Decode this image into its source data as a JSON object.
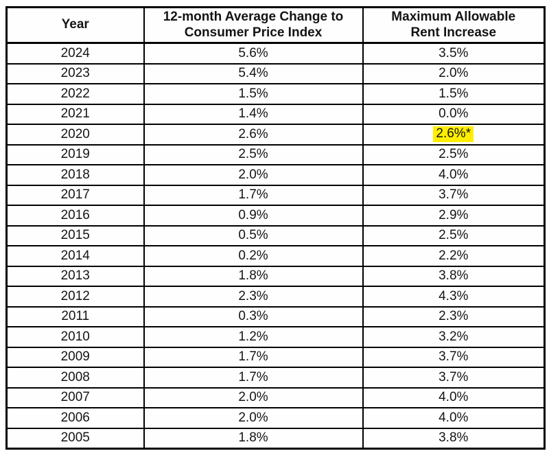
{
  "colors": {
    "border": "#000000",
    "text": "#141414",
    "background": "#ffffff",
    "highlight": "#ffee00"
  },
  "table": {
    "columns": [
      {
        "label": "Year"
      },
      {
        "label": "12-month Average Change to\nConsumer Price Index"
      },
      {
        "label": "Maximum Allowable\nRent Increase"
      }
    ],
    "rows": [
      {
        "year": "2024",
        "cpi": "5.6%",
        "max": "3.5%",
        "highlighted": false
      },
      {
        "year": "2023",
        "cpi": "5.4%",
        "max": "2.0%",
        "highlighted": false
      },
      {
        "year": "2022",
        "cpi": "1.5%",
        "max": "1.5%",
        "highlighted": false
      },
      {
        "year": "2021",
        "cpi": "1.4%",
        "max": "0.0%",
        "highlighted": false
      },
      {
        "year": "2020",
        "cpi": "2.6%",
        "max": "2.6%*",
        "highlighted": true
      },
      {
        "year": "2019",
        "cpi": "2.5%",
        "max": "2.5%",
        "highlighted": false
      },
      {
        "year": "2018",
        "cpi": "2.0%",
        "max": "4.0%",
        "highlighted": false
      },
      {
        "year": "2017",
        "cpi": "1.7%",
        "max": "3.7%",
        "highlighted": false
      },
      {
        "year": "2016",
        "cpi": "0.9%",
        "max": "2.9%",
        "highlighted": false
      },
      {
        "year": "2015",
        "cpi": "0.5%",
        "max": "2.5%",
        "highlighted": false
      },
      {
        "year": "2014",
        "cpi": "0.2%",
        "max": "2.2%",
        "highlighted": false
      },
      {
        "year": "2013",
        "cpi": "1.8%",
        "max": "3.8%",
        "highlighted": false
      },
      {
        "year": "2012",
        "cpi": "2.3%",
        "max": "4.3%",
        "highlighted": false
      },
      {
        "year": "2011",
        "cpi": "0.3%",
        "max": "2.3%",
        "highlighted": false
      },
      {
        "year": "2010",
        "cpi": "1.2%",
        "max": "3.2%",
        "highlighted": false
      },
      {
        "year": "2009",
        "cpi": "1.7%",
        "max": "3.7%",
        "highlighted": false
      },
      {
        "year": "2008",
        "cpi": "1.7%",
        "max": "3.7%",
        "highlighted": false
      },
      {
        "year": "2007",
        "cpi": "2.0%",
        "max": "4.0%",
        "highlighted": false
      },
      {
        "year": "2006",
        "cpi": "2.0%",
        "max": "4.0%",
        "highlighted": false
      },
      {
        "year": "2005",
        "cpi": "1.8%",
        "max": "3.8%",
        "highlighted": false
      }
    ]
  }
}
